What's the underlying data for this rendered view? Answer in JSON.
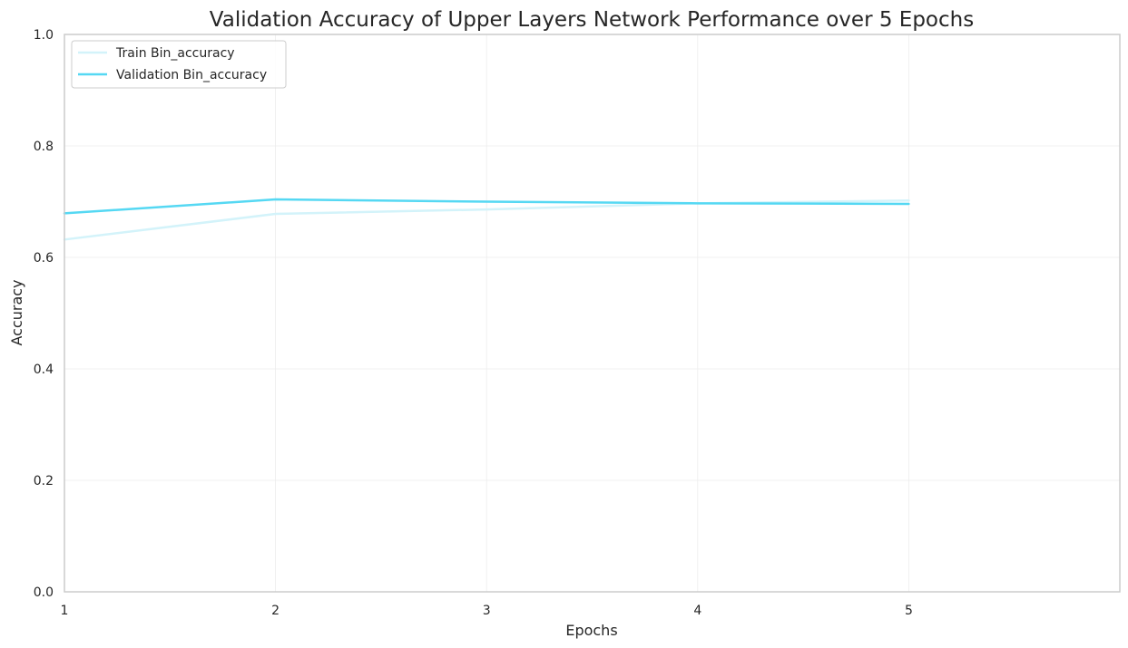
{
  "chart_data": {
    "type": "line",
    "title": "Validation Accuracy of Upper Layers Network Performance over 5 Epochs",
    "xlabel": "Epochs",
    "ylabel": "Accuracy",
    "x": [
      1,
      2,
      3,
      4,
      5
    ],
    "xlim": [
      1,
      6
    ],
    "ylim": [
      0,
      1
    ],
    "xticks": [
      "1",
      "2",
      "3",
      "4",
      "5"
    ],
    "xtick_values": [
      1,
      2,
      3,
      4,
      5
    ],
    "yticks": [
      "0.0",
      "0.2",
      "0.4",
      "0.6",
      "0.8",
      "1.0"
    ],
    "ytick_values": [
      0,
      0.2,
      0.4,
      0.6,
      0.8,
      1.0
    ],
    "grid": true,
    "legend_position": "top-left",
    "series": [
      {
        "name": "Train Bin_accuracy",
        "values": [
          0.632,
          0.678,
          0.686,
          0.697,
          0.702
        ],
        "color": "#d3f3fa"
      },
      {
        "name": "Validation Bin_accuracy",
        "values": [
          0.679,
          0.704,
          0.7,
          0.697,
          0.696
        ],
        "color": "#55d8f3"
      }
    ]
  }
}
